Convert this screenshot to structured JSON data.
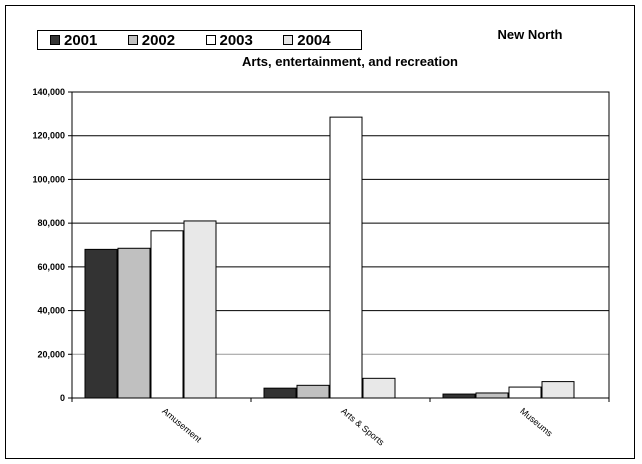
{
  "chart_data": {
    "type": "bar",
    "title": "Arts, entertainment, and recreation",
    "subtitle": "New North",
    "categories": [
      "Amusement",
      "Arts & Sports",
      "Museums"
    ],
    "series": [
      {
        "name": "2001",
        "color": "#333333",
        "values": [
          68000,
          4500,
          1800
        ]
      },
      {
        "name": "2002",
        "color": "#c0c0c0",
        "values": [
          68500,
          5800,
          2300
        ]
      },
      {
        "name": "2003",
        "color": "#ffffff",
        "values": [
          76500,
          128500,
          5000
        ]
      },
      {
        "name": "2004",
        "color": "#e8e8e8",
        "values": [
          81000,
          9000,
          7500
        ]
      }
    ],
    "yticks": [
      "0",
      "20,000",
      "40,000",
      "60,000",
      "80,000",
      "100,000",
      "120,000",
      "140,000"
    ],
    "ylim": [
      0,
      140000
    ],
    "grid": true,
    "legend_position": "top-left"
  }
}
